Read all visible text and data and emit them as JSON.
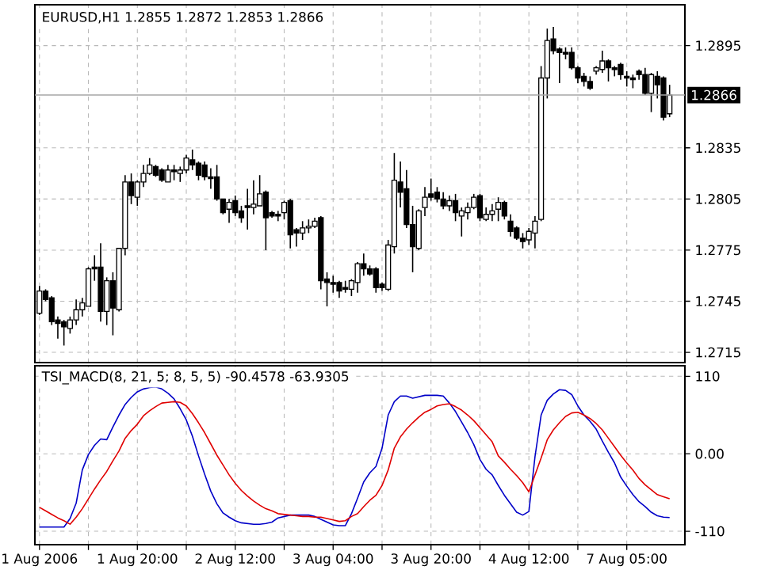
{
  "chart_data": [
    {
      "type": "candlestick",
      "title": "EURUSD,H1 1.2855 1.2872 1.2853 1.2866",
      "categories": [
        null,
        null,
        null,
        null,
        null,
        null,
        null,
        null,
        null,
        null,
        null,
        null,
        null,
        null,
        null,
        null,
        null,
        null,
        null,
        null,
        null,
        null,
        null,
        null,
        null,
        null,
        null,
        null,
        null,
        null,
        null,
        null,
        null,
        null,
        null,
        null,
        null,
        null,
        null,
        null,
        null,
        null,
        null,
        null,
        null,
        null,
        null,
        null,
        null,
        null,
        null,
        null,
        null,
        null,
        null,
        null,
        null,
        null,
        null,
        null,
        null,
        null,
        null,
        null,
        null,
        null,
        null,
        null,
        null,
        null,
        null,
        null,
        null,
        null,
        null,
        null,
        null,
        null,
        null,
        null,
        null,
        null,
        null,
        null,
        null,
        null,
        null,
        null,
        null,
        null,
        null,
        null,
        null,
        null,
        null,
        null,
        null,
        null,
        null,
        null,
        null,
        null,
        null,
        null
      ],
      "ohlc": [
        [
          1.2738,
          1.2754,
          1.2737,
          1.2751
        ],
        [
          1.2751,
          1.2752,
          1.2745,
          1.2746
        ],
        [
          1.2747,
          1.2748,
          1.2731,
          1.2733
        ],
        [
          1.2734,
          1.2736,
          1.2723,
          1.2732
        ],
        [
          1.2733,
          1.2734,
          1.2719,
          1.273
        ],
        [
          1.2729,
          1.2736,
          1.2726,
          1.2734
        ],
        [
          1.2734,
          1.2746,
          1.2731,
          1.274
        ],
        [
          1.274,
          1.2747,
          1.2736,
          1.2744
        ],
        [
          1.2742,
          1.2765,
          1.2742,
          1.2764
        ],
        [
          1.2765,
          1.2772,
          1.2757,
          1.2764
        ],
        [
          1.2765,
          1.2779,
          1.2733,
          1.2739
        ],
        [
          1.2739,
          1.2759,
          1.2731,
          1.2757
        ],
        [
          1.2757,
          1.2762,
          1.2725,
          1.2741
        ],
        [
          1.274,
          1.2776,
          1.2739,
          1.2776
        ],
        [
          1.2776,
          1.2819,
          1.2772,
          1.2815
        ],
        [
          1.2815,
          1.282,
          1.2802,
          1.2807
        ],
        [
          1.2806,
          1.2816,
          1.2801,
          1.2815
        ],
        [
          1.2815,
          1.2825,
          1.2812,
          1.282
        ],
        [
          1.282,
          1.2829,
          1.2819,
          1.2825
        ],
        [
          1.2824,
          1.2825,
          1.2818,
          1.2819
        ],
        [
          1.2822,
          1.2823,
          1.2815,
          1.2816
        ],
        [
          1.2815,
          1.2825,
          1.2815,
          1.2822
        ],
        [
          1.2822,
          1.2825,
          1.2816,
          1.2821
        ],
        [
          1.282,
          1.2824,
          1.2815,
          1.2822
        ],
        [
          1.2822,
          1.2831,
          1.282,
          1.2829
        ],
        [
          1.2828,
          1.2834,
          1.2822,
          1.2825
        ],
        [
          1.2826,
          1.2827,
          1.2816,
          1.2819
        ],
        [
          1.2825,
          1.2827,
          1.2816,
          1.2818
        ],
        [
          1.2818,
          1.2823,
          1.2811,
          1.2817
        ],
        [
          1.2818,
          1.2825,
          1.2804,
          1.2805
        ],
        [
          1.2805,
          1.2805,
          1.2796,
          1.2797
        ],
        [
          1.2799,
          1.2805,
          1.2791,
          1.2803
        ],
        [
          1.2804,
          1.2807,
          1.2795,
          1.2797
        ],
        [
          1.2798,
          1.2801,
          1.2791,
          1.2794
        ],
        [
          1.2801,
          1.2811,
          1.2787,
          1.28
        ],
        [
          1.28,
          1.2816,
          1.2796,
          1.2802
        ],
        [
          1.2801,
          1.2819,
          1.2801,
          1.2808
        ],
        [
          1.2809,
          1.281,
          1.2775,
          1.2794
        ],
        [
          1.2797,
          1.2798,
          1.2794,
          1.2795
        ],
        [
          1.2796,
          1.2798,
          1.2792,
          1.2795
        ],
        [
          1.2797,
          1.2804,
          1.2793,
          1.2803
        ],
        [
          1.2804,
          1.2805,
          1.2776,
          1.2784
        ],
        [
          1.2787,
          1.2788,
          1.2777,
          1.2785
        ],
        [
          1.2785,
          1.2792,
          1.2781,
          1.2788
        ],
        [
          1.2788,
          1.2793,
          1.2785,
          1.2789
        ],
        [
          1.2789,
          1.2794,
          1.2788,
          1.2792
        ],
        [
          1.2794,
          1.2795,
          1.2752,
          1.2757
        ],
        [
          1.2758,
          1.2762,
          1.2742,
          1.2756
        ],
        [
          1.2756,
          1.276,
          1.275,
          1.2755
        ],
        [
          1.2756,
          1.2757,
          1.2747,
          1.2751
        ],
        [
          1.2753,
          1.2757,
          1.275,
          1.2752
        ],
        [
          1.2752,
          1.2758,
          1.2748,
          1.2757
        ],
        [
          1.2756,
          1.2768,
          1.275,
          1.2767
        ],
        [
          1.2767,
          1.2773,
          1.276,
          1.2764
        ],
        [
          1.2764,
          1.2766,
          1.276,
          1.2761
        ],
        [
          1.2764,
          1.2765,
          1.275,
          1.2753
        ],
        [
          1.2755,
          1.2756,
          1.2751,
          1.2753
        ],
        [
          1.2752,
          1.2781,
          1.2751,
          1.2778
        ],
        [
          1.2777,
          1.2832,
          1.2773,
          1.2816
        ],
        [
          1.2815,
          1.2827,
          1.28,
          1.2809
        ],
        [
          1.2811,
          1.2822,
          1.2788,
          1.279
        ],
        [
          1.279,
          1.2801,
          1.2762,
          1.2777
        ],
        [
          1.2776,
          1.2799,
          1.2775,
          1.2798
        ],
        [
          1.28,
          1.2812,
          1.2795,
          1.2806
        ],
        [
          1.2808,
          1.2817,
          1.2804,
          1.2806
        ],
        [
          1.2809,
          1.2812,
          1.2803,
          1.2805
        ],
        [
          1.2805,
          1.2809,
          1.2799,
          1.2801
        ],
        [
          1.2801,
          1.2807,
          1.2798,
          1.2804
        ],
        [
          1.2804,
          1.2808,
          1.2792,
          1.2797
        ],
        [
          1.2795,
          1.28,
          1.2783,
          1.2798
        ],
        [
          1.2797,
          1.2803,
          1.2793,
          1.28
        ],
        [
          1.28,
          1.2808,
          1.2799,
          1.2806
        ],
        [
          1.2807,
          1.2808,
          1.2792,
          1.2794
        ],
        [
          1.2793,
          1.28,
          1.2792,
          1.2796
        ],
        [
          1.2796,
          1.2802,
          1.2792,
          1.2798
        ],
        [
          1.2799,
          1.2806,
          1.2792,
          1.2803
        ],
        [
          1.2803,
          1.2804,
          1.2793,
          1.2795
        ],
        [
          1.2792,
          1.2796,
          1.2783,
          1.2786
        ],
        [
          1.2788,
          1.2789,
          1.2781,
          1.2782
        ],
        [
          1.2782,
          1.2785,
          1.2776,
          1.278
        ],
        [
          1.2781,
          1.2788,
          1.2778,
          1.2786
        ],
        [
          1.2785,
          1.2795,
          1.2776,
          1.2792
        ],
        [
          1.2793,
          1.2883,
          1.2792,
          1.2876
        ],
        [
          1.2876,
          1.2905,
          1.2864,
          1.2898
        ],
        [
          1.2899,
          1.2906,
          1.289,
          1.2892
        ],
        [
          1.2893,
          1.2894,
          1.2873,
          1.2891
        ],
        [
          1.2891,
          1.2894,
          1.2887,
          1.289
        ],
        [
          1.2891,
          1.2894,
          1.2881,
          1.2882
        ],
        [
          1.2882,
          1.2883,
          1.2873,
          1.2876
        ],
        [
          1.2877,
          1.2879,
          1.2871,
          1.2874
        ],
        [
          1.2874,
          1.2877,
          1.2869,
          1.287
        ],
        [
          1.288,
          1.2883,
          1.2878,
          1.2882
        ],
        [
          1.2881,
          1.2892,
          1.2879,
          1.2886
        ],
        [
          1.2886,
          1.2887,
          1.2874,
          1.2882
        ],
        [
          1.2882,
          1.2883,
          1.2877,
          1.2881
        ],
        [
          1.2884,
          1.2885,
          1.2875,
          1.2878
        ],
        [
          1.2877,
          1.288,
          1.2871,
          1.2876
        ],
        [
          1.2876,
          1.2878,
          1.287,
          1.2875
        ],
        [
          1.288,
          1.2881,
          1.2875,
          1.2878
        ],
        [
          1.2878,
          1.2882,
          1.2866,
          1.2867
        ],
        [
          1.2867,
          1.2879,
          1.2856,
          1.2878
        ],
        [
          1.2877,
          1.288,
          1.2864,
          1.2872
        ],
        [
          1.2876,
          1.2877,
          1.2851,
          1.2853
        ],
        [
          1.2855,
          1.2872,
          1.2853,
          1.2866
        ]
      ],
      "ylim": [
        1.2709,
        1.2919
      ],
      "yticks": [
        1.2715,
        1.2745,
        1.2775,
        1.2805,
        1.2835,
        1.2895
      ],
      "ref_lines": [
        {
          "axis": "y",
          "value": 1.2866,
          "label": "1.2866"
        }
      ],
      "grid": true,
      "tick_labels": "y"
    },
    {
      "type": "line",
      "title": "TSI_MACD(8, 21, 5; 8, 5, 5) -90.4578 -63.9305",
      "categories": [
        "1 Aug 2006",
        null,
        null,
        null,
        null,
        null,
        null,
        null,
        null,
        null,
        null,
        null,
        null,
        null,
        null,
        null,
        "1 Aug 20:00",
        null,
        null,
        null,
        null,
        null,
        null,
        null,
        null,
        null,
        null,
        null,
        null,
        null,
        null,
        null,
        "2 Aug 12:00",
        null,
        null,
        null,
        null,
        null,
        null,
        null,
        null,
        null,
        null,
        null,
        null,
        null,
        null,
        null,
        "3 Aug 04:00",
        null,
        null,
        null,
        null,
        null,
        null,
        null,
        null,
        null,
        null,
        null,
        null,
        null,
        null,
        null,
        "3 Aug 20:00",
        null,
        null,
        null,
        null,
        null,
        null,
        null,
        null,
        null,
        null,
        null,
        null,
        null,
        null,
        null,
        "4 Aug 12:00",
        null,
        null,
        null,
        null,
        null,
        null,
        null,
        null,
        null,
        null,
        null,
        null,
        null,
        null,
        null,
        "7 Aug 05:00",
        null,
        null,
        null,
        null,
        null,
        null,
        null
      ],
      "series": [
        {
          "color": "#0000c8",
          "values": [
            -104,
            -104,
            -104,
            -104,
            -104,
            -92,
            -70,
            -23,
            -1,
            12,
            21,
            20,
            38,
            55,
            70,
            80,
            88,
            92,
            94,
            95,
            92,
            86,
            78,
            64,
            48,
            25,
            -3,
            -29,
            -53,
            -71,
            -84,
            -90,
            -95,
            -98,
            -99,
            -100,
            -100,
            -99,
            -97,
            -91,
            -89,
            -87,
            -87,
            -87,
            -87,
            -89,
            -93,
            -97,
            -101,
            -102,
            -102,
            -85,
            -63,
            -40,
            -27,
            -18,
            8,
            55,
            74,
            82,
            82,
            79,
            81,
            83,
            83,
            83,
            82,
            72,
            60,
            45,
            30,
            13,
            -8,
            -22,
            -30,
            -45,
            -59,
            -71,
            -83,
            -87,
            -82,
            -4,
            55,
            76,
            85,
            91,
            90,
            84,
            68,
            55,
            46,
            35,
            18,
            2,
            -13,
            -33,
            -46,
            -58,
            -68,
            -75,
            -83,
            -88,
            -90,
            -90.4578
          ]
        },
        {
          "color": "#e00000",
          "values": [
            -76,
            -81,
            -86,
            -91,
            -95,
            -100,
            -90,
            -78,
            -64,
            -50,
            -37,
            -25,
            -10,
            4,
            22,
            33,
            42,
            54,
            61,
            67,
            72,
            73,
            74,
            73,
            68,
            57,
            44,
            30,
            14,
            -2,
            -16,
            -30,
            -42,
            -52,
            -60,
            -67,
            -73,
            -78,
            -81,
            -85,
            -86,
            -87,
            -88,
            -89,
            -89,
            -90,
            -90,
            -92,
            -94,
            -96,
            -95,
            -89,
            -85,
            -75,
            -66,
            -59,
            -45,
            -23,
            8,
            24,
            35,
            44,
            52,
            59,
            63,
            68,
            70,
            71,
            67,
            62,
            55,
            47,
            37,
            27,
            17,
            -3,
            -12,
            -22,
            -31,
            -41,
            -54,
            -30,
            -6,
            20,
            34,
            44,
            53,
            58,
            59,
            55,
            50,
            43,
            34,
            22,
            10,
            -2,
            -13,
            -23,
            -35,
            -44,
            -51,
            -58,
            -61,
            -63.9305
          ]
        }
      ],
      "ylim": [
        -129,
        125
      ],
      "yticks": [
        110,
        {
          "value": 0,
          "label": "0.00"
        },
        -110
      ],
      "grid": true,
      "line_style": "solid"
    }
  ]
}
